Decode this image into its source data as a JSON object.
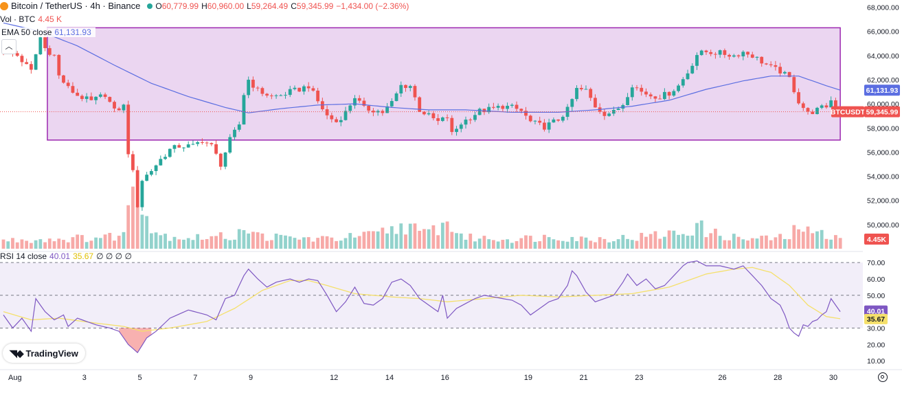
{
  "header": {
    "symbol_title": "Bitcoin / TetherUS · 4h · Binance",
    "open_label": "O",
    "open": "60,779.99",
    "high_label": "H",
    "high": "60,960.00",
    "low_label": "L",
    "low": "59,264.49",
    "close_label": "C",
    "close": "59,345.99",
    "change": "−1,434.00 (−2.36%)"
  },
  "volume_legend": {
    "label": "Vol · BTC",
    "value": "4.45 K"
  },
  "ema_legend": {
    "label": "EMA 50 close",
    "value": "61,131.93"
  },
  "rsi_legend": {
    "label": "RSI 14 close",
    "rsi_value": "40.01",
    "ma_value": "35.67",
    "extra": "∅ ∅ ∅ ∅"
  },
  "badges": {
    "ema": "61,131.93",
    "symbol": "BTCUSDT",
    "last_price": "59,345.99",
    "volume": "4.45K",
    "rsi": "40.01",
    "rsi_ma": "35.67"
  },
  "branding": {
    "logo_text": "TradingView"
  },
  "colors": {
    "up": "#26a69a",
    "down": "#ef5350",
    "ema": "#5b6ee1",
    "rectangle_stroke": "#9c27b0",
    "rectangle_fill": "#e9d2ef",
    "rsi_line": "#7e57c2",
    "rsi_ma": "#f5e06b"
  },
  "chart_data": {
    "type": "candlestick",
    "y_ticks": [
      "68,000.00",
      "66,000.00",
      "64,000.00",
      "62,000.00",
      "60,000.00",
      "58,000.00",
      "56,000.00",
      "54,000.00",
      "52,000.00",
      "50,000.00"
    ],
    "y_tick_values": [
      68000,
      66000,
      64000,
      62000,
      60000,
      58000,
      56000,
      54000,
      52000,
      50000
    ],
    "ylim": [
      48000,
      68600
    ],
    "x_tick_labels": [
      "Aug",
      "3",
      "5",
      "7",
      "9",
      "12",
      "14",
      "16",
      "19",
      "21",
      "23",
      "26",
      "28",
      "30"
    ],
    "x_tick_bars": [
      2.5,
      17.5,
      29.5,
      41.5,
      53.5,
      71.5,
      83.5,
      95.5,
      113.5,
      125.5,
      137.5,
      155.5,
      167.5,
      179.5
    ],
    "bar_count": 182,
    "rectangle": {
      "bar_start": 9.5,
      "bar_end": 181,
      "price_top": 66300,
      "price_bottom": 57000
    },
    "price_keys": [
      [
        0,
        64500
      ],
      [
        3,
        64000
      ],
      [
        6,
        62700
      ],
      [
        8,
        65500
      ],
      [
        9,
        64600
      ],
      [
        11,
        64000
      ],
      [
        12,
        62300
      ],
      [
        14,
        61300
      ],
      [
        16,
        60700
      ],
      [
        19,
        60200
      ],
      [
        22,
        60800
      ],
      [
        24,
        59400
      ],
      [
        26,
        59800
      ],
      [
        27,
        56000
      ],
      [
        28,
        54300
      ],
      [
        29,
        51600
      ],
      [
        30,
        53700
      ],
      [
        32,
        54500
      ],
      [
        34,
        55400
      ],
      [
        36,
        56200
      ],
      [
        38,
        56500
      ],
      [
        41,
        56500
      ],
      [
        43,
        57000
      ],
      [
        45,
        56500
      ],
      [
        47,
        55000
      ],
      [
        49,
        57000
      ],
      [
        51,
        58300
      ],
      [
        52,
        60800
      ],
      [
        53,
        62000
      ],
      [
        55,
        61100
      ],
      [
        58,
        60600
      ],
      [
        60,
        60700
      ],
      [
        62,
        61000
      ],
      [
        64,
        61200
      ],
      [
        66,
        61500
      ],
      [
        68,
        60200
      ],
      [
        70,
        59000
      ],
      [
        72,
        58500
      ],
      [
        74,
        59300
      ],
      [
        76,
        60600
      ],
      [
        78,
        59600
      ],
      [
        80,
        59500
      ],
      [
        82,
        59300
      ],
      [
        84,
        60100
      ],
      [
        86,
        61500
      ],
      [
        88,
        61500
      ],
      [
        90,
        59500
      ],
      [
        92,
        59000
      ],
      [
        94,
        58500
      ],
      [
        96,
        58900
      ],
      [
        97,
        57500
      ],
      [
        99,
        58400
      ],
      [
        101,
        58900
      ],
      [
        103,
        59400
      ],
      [
        106,
        59600
      ],
      [
        108,
        59800
      ],
      [
        110,
        59700
      ],
      [
        112,
        59400
      ],
      [
        114,
        58500
      ],
      [
        117,
        58100
      ],
      [
        120,
        58700
      ],
      [
        122,
        59500
      ],
      [
        124,
        61200
      ],
      [
        126,
        61100
      ],
      [
        128,
        59800
      ],
      [
        130,
        59200
      ],
      [
        132,
        59300
      ],
      [
        134,
        60000
      ],
      [
        136,
        61600
      ],
      [
        138,
        61000
      ],
      [
        140,
        60700
      ],
      [
        142,
        60600
      ],
      [
        144,
        60900
      ],
      [
        146,
        61500
      ],
      [
        148,
        62600
      ],
      [
        150,
        64100
      ],
      [
        152,
        64300
      ],
      [
        155,
        64200
      ],
      [
        158,
        64000
      ],
      [
        160,
        64300
      ],
      [
        162,
        64000
      ],
      [
        164,
        63500
      ],
      [
        166,
        63000
      ],
      [
        168,
        62700
      ],
      [
        170,
        62100
      ],
      [
        172,
        60200
      ],
      [
        174,
        59200
      ],
      [
        176,
        59500
      ],
      [
        178,
        59800
      ],
      [
        179,
        60300
      ],
      [
        181,
        59346
      ]
    ],
    "ema_keys": [
      [
        0,
        66700
      ],
      [
        8,
        66000
      ],
      [
        16,
        64800
      ],
      [
        24,
        63200
      ],
      [
        32,
        61700
      ],
      [
        40,
        60600
      ],
      [
        48,
        59700
      ],
      [
        53,
        59250
      ],
      [
        60,
        59600
      ],
      [
        68,
        59900
      ],
      [
        76,
        60000
      ],
      [
        84,
        59700
      ],
      [
        92,
        59500
      ],
      [
        100,
        59500
      ],
      [
        110,
        59300
      ],
      [
        120,
        59300
      ],
      [
        128,
        59500
      ],
      [
        136,
        59800
      ],
      [
        144,
        60300
      ],
      [
        152,
        61200
      ],
      [
        160,
        61900
      ],
      [
        166,
        62300
      ],
      [
        172,
        62300
      ],
      [
        178,
        61500
      ],
      [
        181,
        61132
      ]
    ],
    "volume_keys": [
      [
        0,
        0.3
      ],
      [
        10,
        0.35
      ],
      [
        20,
        0.4
      ],
      [
        26,
        0.5
      ],
      [
        28,
        2.6
      ],
      [
        29,
        2.4
      ],
      [
        30,
        2.0
      ],
      [
        31,
        1.2
      ],
      [
        32,
        0.8
      ],
      [
        34,
        0.5
      ],
      [
        40,
        0.4
      ],
      [
        50,
        0.45
      ],
      [
        52,
        0.9
      ],
      [
        54,
        0.5
      ],
      [
        60,
        0.4
      ],
      [
        70,
        0.35
      ],
      [
        80,
        0.5
      ],
      [
        88,
        0.9
      ],
      [
        90,
        0.5
      ],
      [
        96,
        0.9
      ],
      [
        100,
        0.4
      ],
      [
        110,
        0.35
      ],
      [
        120,
        0.45
      ],
      [
        126,
        0.35
      ],
      [
        136,
        0.4
      ],
      [
        148,
        0.6
      ],
      [
        150,
        0.9
      ],
      [
        152,
        0.6
      ],
      [
        160,
        0.35
      ],
      [
        170,
        0.4
      ],
      [
        172,
        0.9
      ],
      [
        174,
        0.6
      ],
      [
        178,
        0.5
      ],
      [
        181,
        0.55
      ]
    ],
    "volume_ylim": [
      0,
      2.8
    ],
    "rsi": {
      "y_ticks": [
        "70.00",
        "60.00",
        "50.00",
        "40.00",
        "30.00",
        "20.00",
        "10.00"
      ],
      "y_tick_values": [
        70,
        60,
        50,
        40,
        30,
        20,
        10
      ],
      "ylim": [
        5,
        73
      ],
      "levels": [
        70,
        50,
        30
      ],
      "rsi_keys": [
        [
          0,
          38
        ],
        [
          2,
          30
        ],
        [
          4,
          36
        ],
        [
          6,
          28
        ],
        [
          7,
          48
        ],
        [
          9,
          40
        ],
        [
          11,
          35
        ],
        [
          13,
          38
        ],
        [
          14,
          31
        ],
        [
          16,
          36
        ],
        [
          18,
          34
        ],
        [
          20,
          32
        ],
        [
          23,
          30
        ],
        [
          25,
          28
        ],
        [
          27,
          20
        ],
        [
          29,
          15
        ],
        [
          31,
          24
        ],
        [
          33,
          28
        ],
        [
          36,
          36
        ],
        [
          40,
          41
        ],
        [
          44,
          38
        ],
        [
          46,
          35
        ],
        [
          48,
          48
        ],
        [
          50,
          50
        ],
        [
          52,
          62
        ],
        [
          53,
          66
        ],
        [
          55,
          60
        ],
        [
          57,
          55
        ],
        [
          59,
          58
        ],
        [
          62,
          60
        ],
        [
          64,
          58
        ],
        [
          66,
          60
        ],
        [
          68,
          59
        ],
        [
          70,
          50
        ],
        [
          72,
          40
        ],
        [
          74,
          46
        ],
        [
          76,
          55
        ],
        [
          78,
          45
        ],
        [
          80,
          44
        ],
        [
          82,
          48
        ],
        [
          84,
          58
        ],
        [
          86,
          60
        ],
        [
          88,
          56
        ],
        [
          90,
          48
        ],
        [
          92,
          44
        ],
        [
          94,
          40
        ],
        [
          95,
          50
        ],
        [
          96,
          36
        ],
        [
          98,
          42
        ],
        [
          100,
          45
        ],
        [
          102,
          48
        ],
        [
          104,
          50
        ],
        [
          106,
          49
        ],
        [
          108,
          48
        ],
        [
          110,
          47
        ],
        [
          112,
          44
        ],
        [
          114,
          38
        ],
        [
          116,
          42
        ],
        [
          118,
          46
        ],
        [
          120,
          48
        ],
        [
          122,
          56
        ],
        [
          123,
          65
        ],
        [
          124,
          62
        ],
        [
          126,
          52
        ],
        [
          128,
          46
        ],
        [
          130,
          48
        ],
        [
          132,
          50
        ],
        [
          134,
          58
        ],
        [
          135,
          63
        ],
        [
          137,
          56
        ],
        [
          139,
          60
        ],
        [
          141,
          54
        ],
        [
          143,
          56
        ],
        [
          145,
          62
        ],
        [
          147,
          68
        ],
        [
          148,
          70
        ],
        [
          150,
          71
        ],
        [
          152,
          68
        ],
        [
          155,
          68
        ],
        [
          158,
          66
        ],
        [
          160,
          68
        ],
        [
          162,
          62
        ],
        [
          164,
          56
        ],
        [
          166,
          48
        ],
        [
          168,
          44
        ],
        [
          169,
          38
        ],
        [
          170,
          30
        ],
        [
          171,
          27
        ],
        [
          172,
          25
        ],
        [
          173,
          32
        ],
        [
          174,
          31
        ],
        [
          175,
          34
        ],
        [
          176,
          35
        ],
        [
          177,
          38
        ],
        [
          178,
          40
        ],
        [
          179,
          48
        ],
        [
          181,
          40
        ]
      ],
      "ma_keys": [
        [
          0,
          40
        ],
        [
          6,
          35
        ],
        [
          12,
          36
        ],
        [
          20,
          33
        ],
        [
          26,
          31
        ],
        [
          30,
          28
        ],
        [
          36,
          30
        ],
        [
          44,
          34
        ],
        [
          50,
          42
        ],
        [
          56,
          53
        ],
        [
          62,
          59
        ],
        [
          66,
          59
        ],
        [
          70,
          56
        ],
        [
          76,
          51
        ],
        [
          84,
          49
        ],
        [
          90,
          48
        ],
        [
          96,
          46
        ],
        [
          104,
          48
        ],
        [
          112,
          50
        ],
        [
          120,
          49
        ],
        [
          128,
          50
        ],
        [
          136,
          51
        ],
        [
          144,
          55
        ],
        [
          152,
          63
        ],
        [
          158,
          66
        ],
        [
          162,
          67
        ],
        [
          166,
          64
        ],
        [
          170,
          56
        ],
        [
          174,
          44
        ],
        [
          178,
          37
        ],
        [
          181,
          35.67
        ]
      ]
    }
  }
}
